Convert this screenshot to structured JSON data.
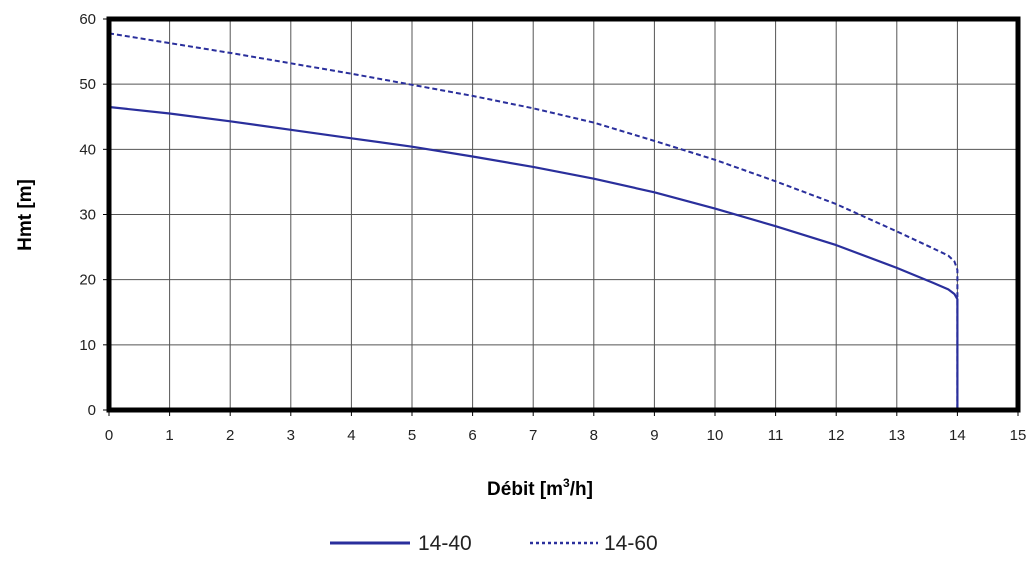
{
  "chart_data": {
    "type": "line",
    "xlabel": "Débit [m",
    "xlabel_sup": "3",
    "xlabel_end": "/h]",
    "ylabel": "Hmt [m]",
    "xlim": [
      0,
      15
    ],
    "ylim": [
      0,
      60
    ],
    "x_ticks": [
      "0",
      "1",
      "2",
      "3",
      "4",
      "5",
      "6",
      "7",
      "8",
      "9",
      "10",
      "11",
      "12",
      "13",
      "14",
      "15"
    ],
    "y_ticks": [
      "0",
      "10",
      "20",
      "30",
      "40",
      "50",
      "60"
    ],
    "grid": true,
    "legend_position": "bottom-center",
    "series": [
      {
        "name": "14-40",
        "style": "solid",
        "color": "#2a2f9c",
        "x": [
          0,
          1,
          2,
          3,
          4,
          5,
          6,
          7,
          8,
          9,
          10,
          11,
          12,
          13,
          13.6,
          13.85,
          13.95,
          14.0,
          14.0
        ],
        "y": [
          46.5,
          45.5,
          44.3,
          43.0,
          41.7,
          40.4,
          38.9,
          37.3,
          35.5,
          33.4,
          30.9,
          28.2,
          25.3,
          21.8,
          19.5,
          18.5,
          17.8,
          17.0,
          0
        ]
      },
      {
        "name": "14-60",
        "style": "dotted",
        "color": "#2a2f9c",
        "x": [
          0,
          1,
          2,
          3,
          4,
          5,
          6,
          7,
          8,
          9,
          10,
          11,
          12,
          13,
          13.6,
          13.85,
          13.95,
          14.0,
          14.0
        ],
        "y": [
          57.8,
          56.3,
          54.8,
          53.2,
          51.6,
          49.9,
          48.2,
          46.3,
          44.1,
          41.3,
          38.4,
          35.1,
          31.6,
          27.4,
          24.8,
          23.7,
          22.8,
          21.5,
          0
        ]
      }
    ]
  }
}
